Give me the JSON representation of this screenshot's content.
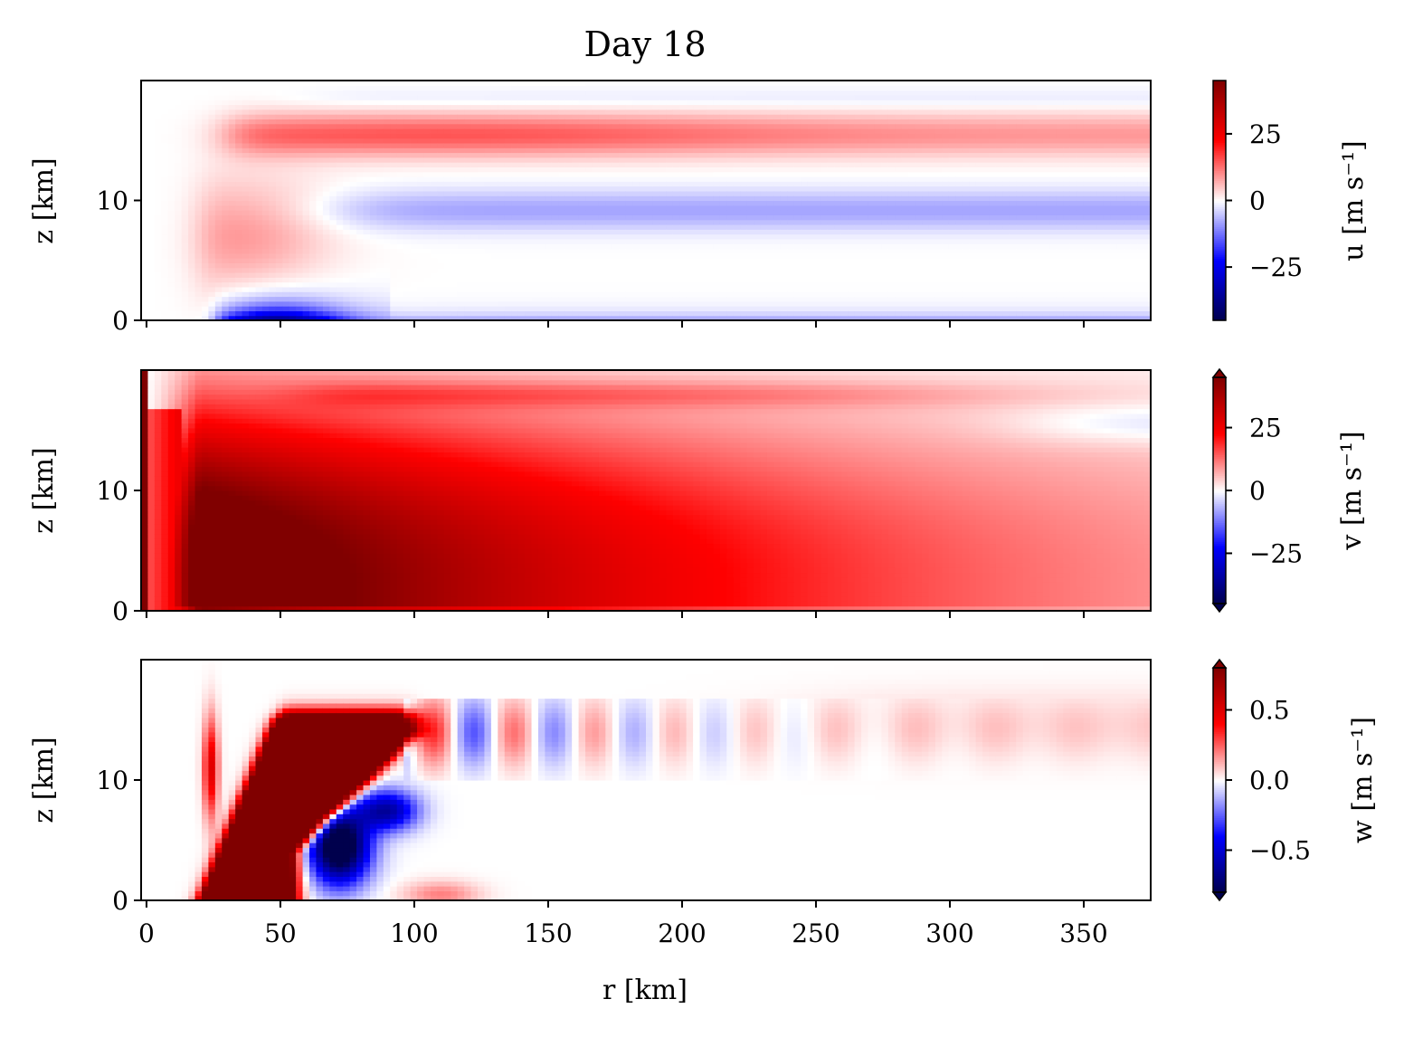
{
  "chart_data": {
    "type": "heatmap",
    "title": "Day 18",
    "xlabel": "r [km]",
    "x_range": [
      -2,
      375
    ],
    "x_ticks": [
      0,
      50,
      100,
      150,
      200,
      250,
      300,
      350
    ],
    "y_ticks": [
      0,
      10
    ],
    "colormap": "seismic",
    "panels": [
      {
        "variable": "u",
        "ylabel": "z [km]",
        "ylim": [
          0,
          20
        ],
        "colorbar_label": "u [m s⁻¹]",
        "colorbar_ticks": [
          -25,
          0,
          25
        ],
        "colorbar_tick_labels": [
          "−25",
          "0",
          "25"
        ],
        "vmin": -45,
        "vmax": 45,
        "extend": "neither",
        "features": [
          {
            "kind": "outflow",
            "r": [
              40,
              375
            ],
            "z": 15.5,
            "peak": 15
          },
          {
            "kind": "inflow",
            "r": [
              25,
              375
            ],
            "z": 0.8,
            "peak": -40
          },
          {
            "kind": "weak-inflow",
            "r": [
              70,
              375
            ],
            "z": 9,
            "peak": -8
          }
        ]
      },
      {
        "variable": "v",
        "ylabel": "z [km]",
        "ylim": [
          0,
          20
        ],
        "colorbar_label": "v [m s⁻¹]",
        "colorbar_ticks": [
          -25,
          0,
          25
        ],
        "colorbar_tick_labels": [
          "−25",
          "0",
          "25"
        ],
        "vmin": -45,
        "vmax": 45,
        "extend": "both",
        "features": [
          {
            "kind": "max-wind",
            "r": 45,
            "z": 3,
            "peak": 60
          }
        ]
      },
      {
        "variable": "w",
        "ylabel": "z [km]",
        "ylim": [
          0,
          20
        ],
        "colorbar_label": "w [m s⁻¹]",
        "colorbar_ticks": [
          -0.5,
          0.0,
          0.5
        ],
        "colorbar_tick_labels": [
          "−0.5",
          "0.0",
          "0.5"
        ],
        "vmin": -0.8,
        "vmax": 0.8,
        "extend": "both",
        "features": [
          {
            "kind": "eyewall-updraft",
            "r": [
              22,
              90
            ],
            "z": [
              0,
              16
            ],
            "peak": 1.5
          },
          {
            "kind": "downdraft",
            "r": 72,
            "z": 4,
            "peak": -1.0
          }
        ]
      }
    ]
  }
}
